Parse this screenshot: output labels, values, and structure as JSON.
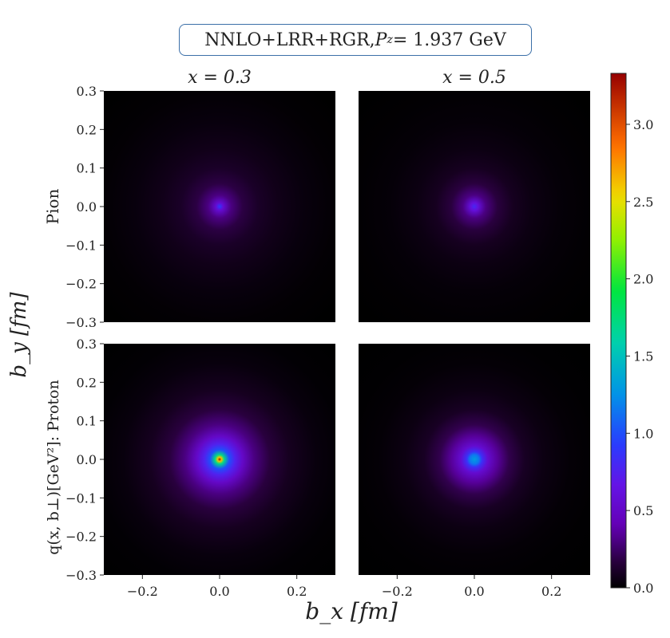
{
  "title": {
    "prefix": "NNLO+LRR+RGR, ",
    "var": "P",
    "sub": "z",
    "value": " = 1.937 GeV"
  },
  "chart_data": {
    "type": "heatmap",
    "colormap": "jet",
    "columns": [
      "x = 0.3",
      "x = 0.5"
    ],
    "rows": [
      "Pion",
      "q(x, b⊥)[GeV²]: Proton"
    ],
    "xlabel": "b_x [fm]",
    "ylabel": "b_y [fm]",
    "xlim": [
      -0.3,
      0.3
    ],
    "ylim": [
      -0.3,
      0.3
    ],
    "x_ticks": [
      "−0.2",
      "0.0",
      "0.2"
    ],
    "x_tick_values": [
      -0.2,
      0.0,
      0.2
    ],
    "y_ticks": [
      "0.3",
      "0.2",
      "0.1",
      "0.0",
      "−0.1",
      "−0.2",
      "−0.3"
    ],
    "y_tick_values": [
      0.3,
      0.2,
      0.1,
      0.0,
      -0.1,
      -0.2,
      -0.3
    ],
    "colorbar": {
      "range": [
        0.0,
        3.33
      ],
      "ticks": [
        "0.0",
        "0.5",
        "1.0",
        "1.5",
        "2.0",
        "2.5",
        "3.0"
      ],
      "tick_values": [
        0.0,
        0.5,
        1.0,
        1.5,
        2.0,
        2.5,
        3.0
      ]
    },
    "panels": [
      {
        "row": "Pion",
        "column": "x = 0.3",
        "peak_value": 0.9,
        "radial_profile": [
          [
            0,
            0.9
          ],
          [
            0.01,
            0.55
          ],
          [
            0.03,
            0.3
          ],
          [
            0.06,
            0.18
          ],
          [
            0.1,
            0.11
          ],
          [
            0.15,
            0.07
          ],
          [
            0.22,
            0.035
          ],
          [
            0.3,
            0.012
          ],
          [
            0.4,
            0.0
          ]
        ]
      },
      {
        "row": "Pion",
        "column": "x = 0.5",
        "peak_value": 0.8,
        "radial_profile": [
          [
            0,
            0.8
          ],
          [
            0.01,
            0.6
          ],
          [
            0.03,
            0.3
          ],
          [
            0.06,
            0.17
          ],
          [
            0.1,
            0.09
          ],
          [
            0.15,
            0.05
          ],
          [
            0.22,
            0.022
          ],
          [
            0.3,
            0.008
          ],
          [
            0.4,
            0.0
          ]
        ]
      },
      {
        "row": "Proton",
        "column": "x = 0.3",
        "peak_value": 3.3,
        "radial_profile": [
          [
            0,
            3.3
          ],
          [
            0.005,
            2.6
          ],
          [
            0.012,
            1.7
          ],
          [
            0.025,
            1.0
          ],
          [
            0.04,
            0.75
          ],
          [
            0.06,
            0.5
          ],
          [
            0.09,
            0.3
          ],
          [
            0.13,
            0.17
          ],
          [
            0.18,
            0.09
          ],
          [
            0.25,
            0.035
          ],
          [
            0.32,
            0.01
          ],
          [
            0.42,
            0.0
          ]
        ]
      },
      {
        "row": "Proton",
        "column": "x = 0.5",
        "peak_value": 1.3,
        "radial_profile": [
          [
            0,
            1.3
          ],
          [
            0.012,
            1.15
          ],
          [
            0.02,
            0.85
          ],
          [
            0.035,
            0.55
          ],
          [
            0.06,
            0.35
          ],
          [
            0.09,
            0.2
          ],
          [
            0.13,
            0.1
          ],
          [
            0.18,
            0.05
          ],
          [
            0.25,
            0.018
          ],
          [
            0.32,
            0.005
          ],
          [
            0.42,
            0.0
          ]
        ]
      }
    ]
  }
}
